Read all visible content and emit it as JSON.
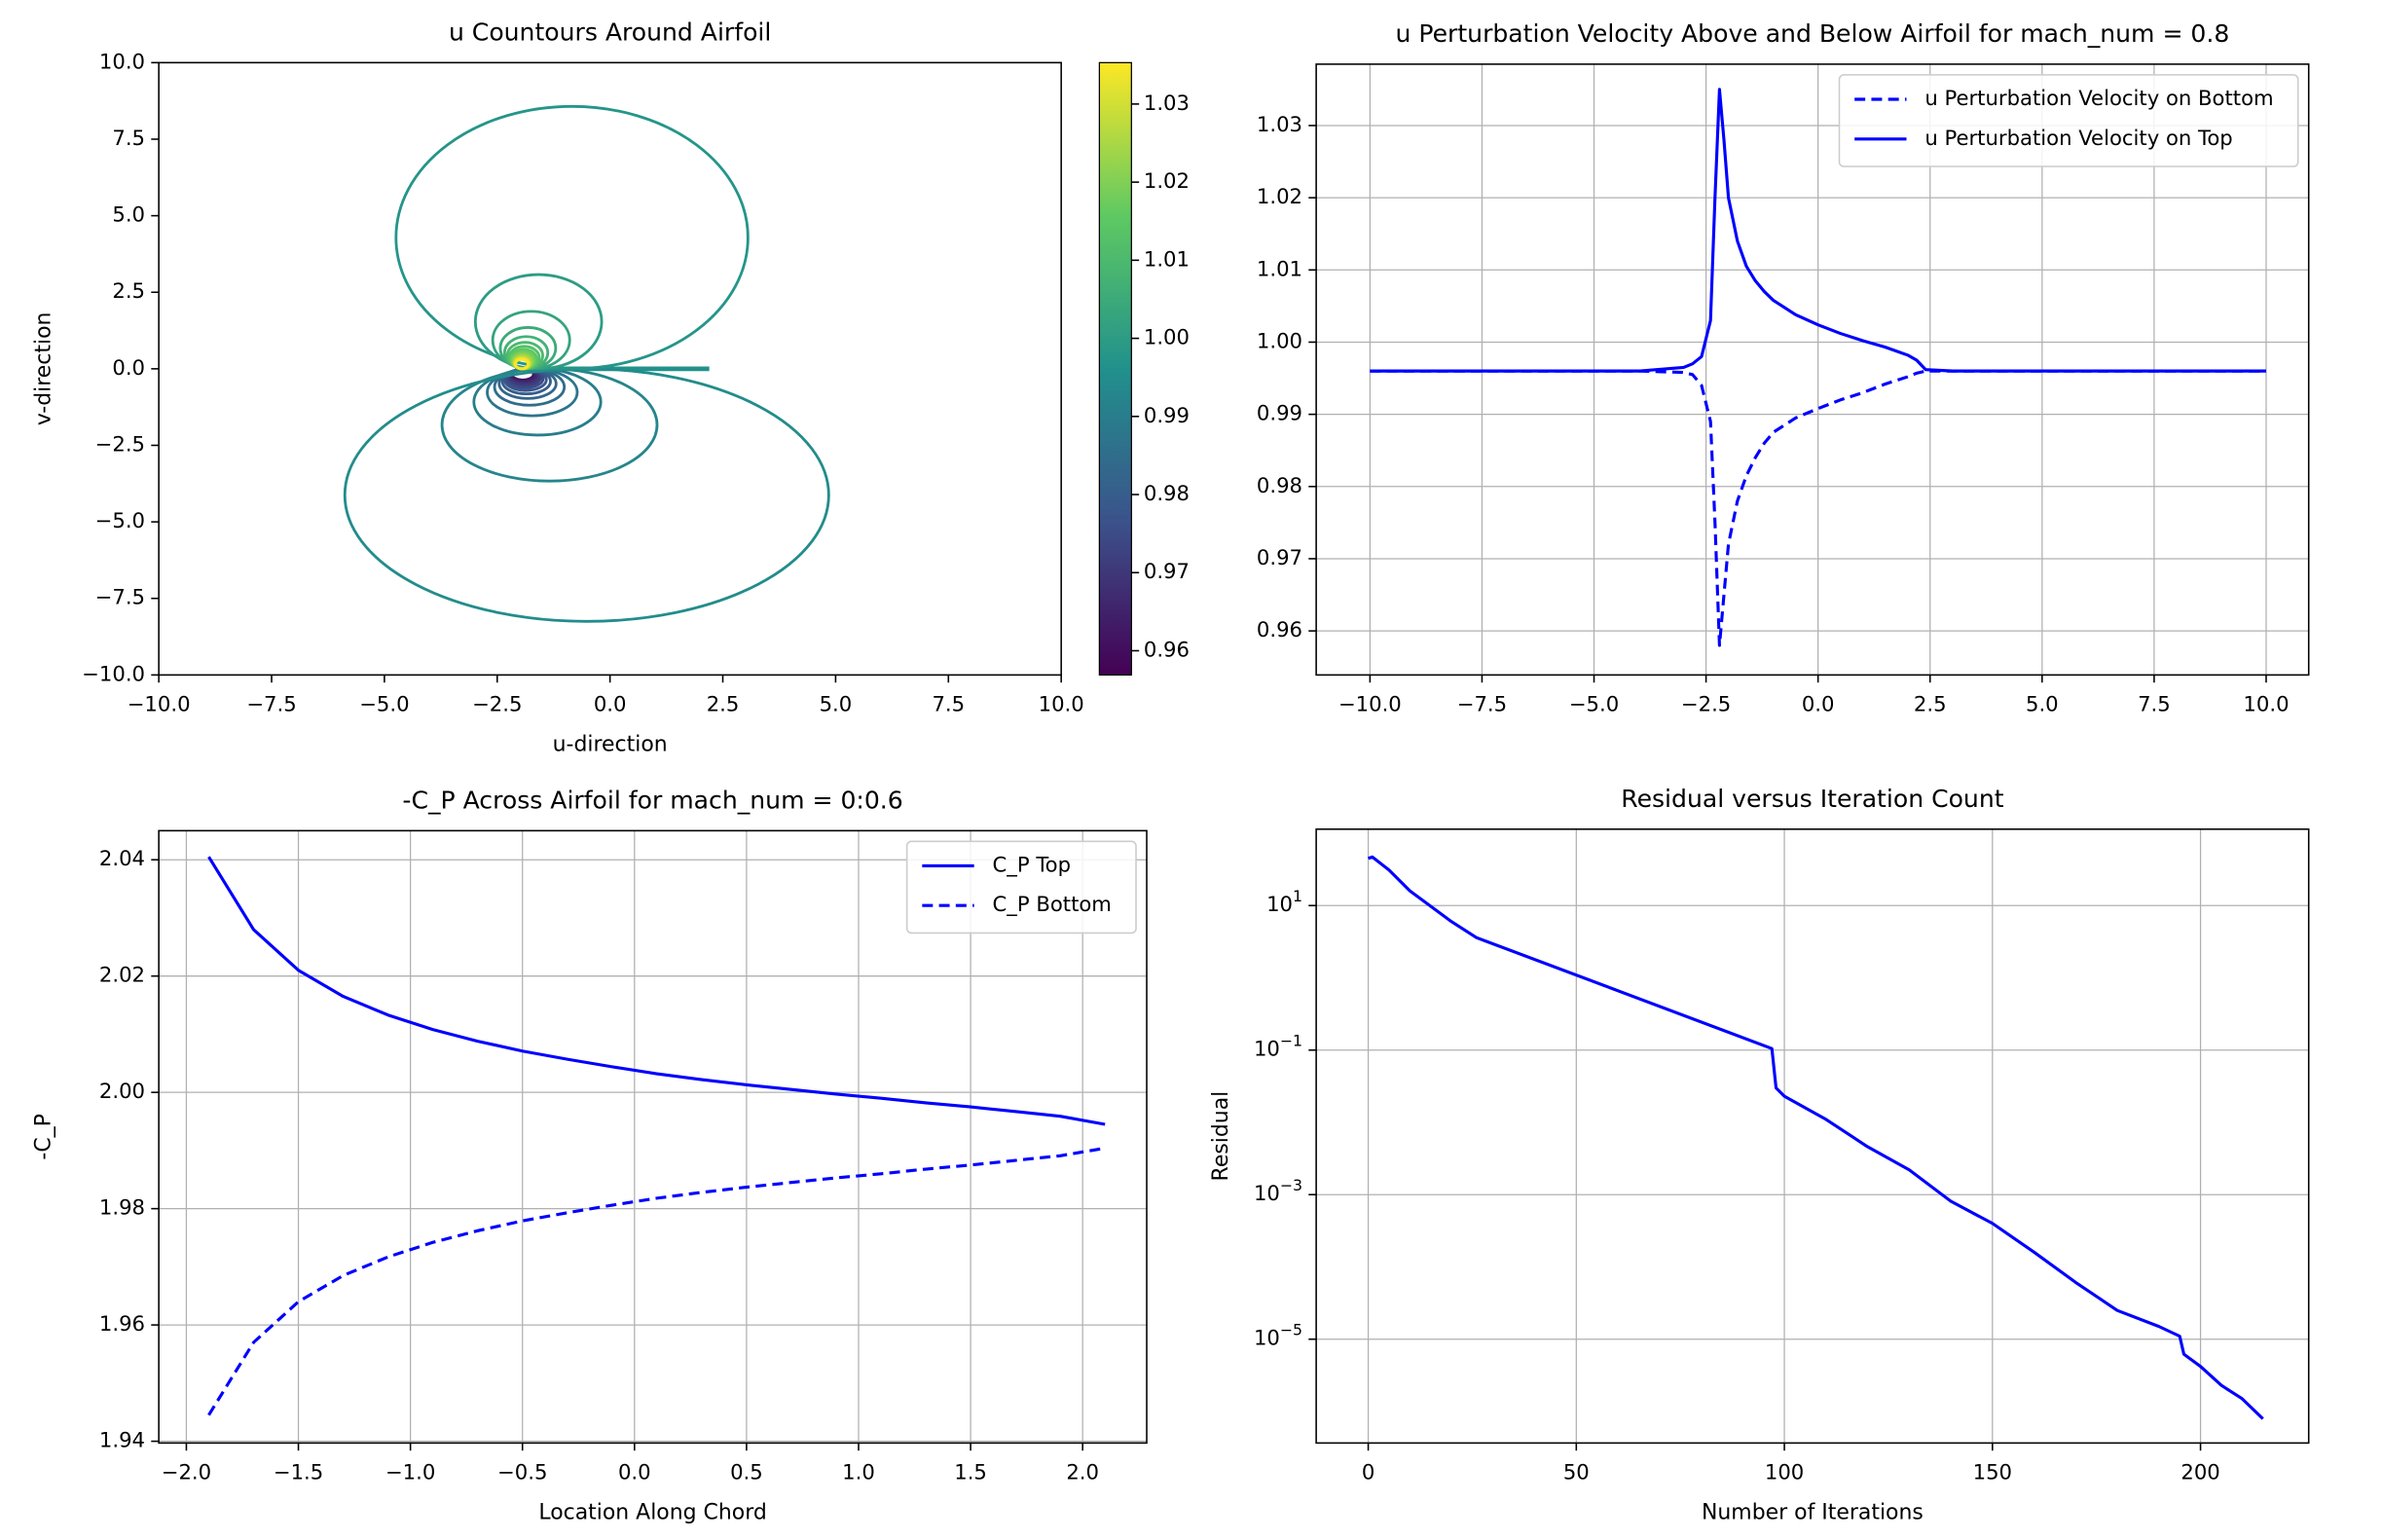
{
  "chart_data": [
    {
      "type": "contour",
      "title": "u Countours Around Airfoil",
      "xlabel": "u-direction",
      "ylabel": "v-direction",
      "xlim": [
        -10,
        10
      ],
      "ylim": [
        -10,
        10
      ],
      "xticks": [
        {
          "value": -10,
          "label": "−10.0"
        },
        {
          "value": -7.5,
          "label": "−7.5"
        },
        {
          "value": -5,
          "label": "−5.0"
        },
        {
          "value": -2.5,
          "label": "−2.5"
        },
        {
          "value": 0,
          "label": "0.0"
        },
        2.5,
        {
          "value": 5,
          "label": "5.0"
        },
        7.5,
        {
          "value": 10,
          "label": "10.0"
        }
      ],
      "yticks": [
        {
          "value": -10,
          "label": "−10.0"
        },
        {
          "value": -7.5,
          "label": "−7.5"
        },
        {
          "value": -5,
          "label": "−5.0"
        },
        {
          "value": -2.5,
          "label": "−2.5"
        },
        {
          "value": 0,
          "label": "0.0"
        },
        2.5,
        {
          "value": 5,
          "label": "5.0"
        },
        7.5,
        {
          "value": 10,
          "label": "10.0"
        }
      ],
      "levels": [
        0.96,
        0.9625,
        0.965,
        0.9675,
        0.97,
        0.9725,
        0.975,
        0.9775,
        0.98,
        0.9825,
        0.985,
        0.9875,
        0.99,
        0.9925,
        0.9945,
        0.9975,
        1.0,
        1.0025,
        1.005,
        1.0075,
        1.01,
        1.0125,
        1.015,
        1.0175,
        1.02,
        1.0225,
        1.025,
        1.0275,
        1.03,
        1.0325,
        1.035
      ],
      "clim": [
        0.9569,
        1.0353
      ],
      "cticks": [
        0.96,
        0.97,
        0.98,
        0.99,
        {
          "value": 1.0,
          "label": "1.00"
        },
        1.01,
        1.02,
        1.03
      ],
      "colormap": "viridis",
      "grid": false
    },
    {
      "type": "line",
      "title": "u Perturbation Velocity Above and Below Airfoil for mach_num = 0.8",
      "xlim": [
        -11.2,
        10.95
      ],
      "ylim": [
        0.9539,
        1.0385
      ],
      "xticks": [
        {
          "value": -10,
          "label": "−10.0"
        },
        {
          "value": -7.5,
          "label": "−7.5"
        },
        {
          "value": -5,
          "label": "−5.0"
        },
        {
          "value": -2.5,
          "label": "−2.5"
        },
        {
          "value": 0,
          "label": "0.0"
        },
        2.5,
        {
          "value": 5,
          "label": "5.0"
        },
        7.5,
        {
          "value": 10,
          "label": "10.0"
        }
      ],
      "yticks": [
        0.96,
        0.97,
        0.98,
        0.99,
        {
          "value": 1.0,
          "label": "1.00"
        },
        1.01,
        1.02,
        1.03
      ],
      "grid": true,
      "legend": "upper right",
      "x": [
        -10,
        -8,
        -6,
        -4,
        -3,
        -2.8,
        -2.6,
        -2.4,
        -2.3,
        -2.2,
        -2.1,
        -2,
        -1.8,
        -1.6,
        -1.4,
        -1.2,
        -1,
        -0.5,
        0,
        0.5,
        1,
        1.5,
        2,
        2.2,
        2.4,
        3,
        4,
        6,
        8,
        10
      ],
      "series": [
        {
          "name": "u Perturbation Velocity on Bottom",
          "color": "#0000ff",
          "linestyle": "dashed",
          "values": [
            0.996,
            0.996,
            0.996,
            0.996,
            0.9958,
            0.9955,
            0.994,
            0.989,
            0.975,
            0.958,
            0.965,
            0.972,
            0.978,
            0.9815,
            0.984,
            0.986,
            0.9875,
            0.9895,
            0.9908,
            0.992,
            0.993,
            0.9942,
            0.9952,
            0.9957,
            0.996,
            0.996,
            0.996,
            0.996,
            0.996,
            0.996
          ]
        },
        {
          "name": "u Perturbation Velocity on Top",
          "color": "#0000ff",
          "linestyle": "solid",
          "values": [
            0.996,
            0.996,
            0.996,
            0.996,
            0.9965,
            0.997,
            0.998,
            1.003,
            1.02,
            1.035,
            1.028,
            1.02,
            1.014,
            1.0105,
            1.0085,
            1.007,
            1.0058,
            1.0038,
            1.0024,
            1.0012,
            1.0002,
            0.9993,
            0.9982,
            0.9975,
            0.9962,
            0.996,
            0.996,
            0.996,
            0.996,
            0.996
          ]
        }
      ]
    },
    {
      "type": "line",
      "title": "-C_P Across Airfoil for mach_num = 0:0.6",
      "xlabel": "Location Along Chord",
      "ylabel": "-C_P",
      "xlim": [
        -2.123,
        2.286
      ],
      "ylim": [
        1.9397,
        2.045
      ],
      "xticks": [
        {
          "value": -2,
          "label": "−2.0"
        },
        {
          "value": -1.5,
          "label": "−1.5"
        },
        {
          "value": -1,
          "label": "−1.0"
        },
        {
          "value": -0.5,
          "label": "−0.5"
        },
        {
          "value": 0,
          "label": "0.0"
        },
        0.5,
        {
          "value": 1,
          "label": "1.0"
        },
        1.5,
        {
          "value": 2,
          "label": "2.0"
        }
      ],
      "yticks": [
        1.94,
        1.96,
        1.98,
        {
          "value": 2.0,
          "label": "2.00"
        },
        2.02,
        2.04
      ],
      "grid": true,
      "legend": "upper right",
      "x": [
        -1.9,
        -1.7,
        -1.5,
        -1.3,
        -1.1,
        -0.9,
        -0.7,
        -0.5,
        -0.3,
        -0.1,
        0.1,
        0.3,
        0.5,
        0.7,
        0.9,
        1.1,
        1.3,
        1.5,
        1.7,
        1.9,
        2.1
      ],
      "series": [
        {
          "name": "C_P Top",
          "color": "#0000ff",
          "linestyle": "solid",
          "values": [
            2.0405,
            2.028,
            2.021,
            2.0165,
            2.0133,
            2.0108,
            2.0088,
            2.0071,
            2.0057,
            2.0044,
            2.0032,
            2.0022,
            2.0013,
            2.0005,
            1.9997,
            1.999,
            1.9982,
            1.9975,
            1.9967,
            1.9959,
            1.9945
          ]
        },
        {
          "name": "C_P Bottom",
          "color": "#0000ff",
          "linestyle": "dashed",
          "values": [
            1.9445,
            1.957,
            1.964,
            1.9685,
            1.9717,
            1.9742,
            1.9762,
            1.9779,
            1.9793,
            1.9806,
            1.9818,
            1.9828,
            1.9837,
            1.9845,
            1.9853,
            1.986,
            1.9868,
            1.9875,
            1.9883,
            1.9891,
            1.9904
          ]
        }
      ]
    },
    {
      "type": "line",
      "title": "Residual versus Iteration Count",
      "xlabel": "Number of Iterations",
      "ylabel": "Residual",
      "xlim": [
        -12.5,
        226
      ],
      "ylim": [
        3.66e-07,
        114
      ],
      "ylog": true,
      "xticks": [
        0,
        50,
        100,
        150,
        200
      ],
      "yticks": [
        {
          "value": 10,
          "label": "10^1"
        },
        {
          "value": 0.1,
          "label": "10^−1"
        },
        {
          "value": 0.001,
          "label": "10^−3"
        },
        {
          "value": 1e-05,
          "label": "10^−5"
        }
      ],
      "grid": true,
      "x": [
        0,
        1,
        5,
        10,
        20,
        26,
        97,
        98,
        100,
        110,
        120,
        130,
        140,
        150,
        160,
        170,
        180,
        190,
        195,
        196,
        200,
        205,
        210,
        215
      ],
      "series": [
        {
          "color": "#0000ff",
          "linestyle": "solid",
          "values": [
            45,
            47,
            31,
            16,
            6,
            3.6,
            0.105,
            0.03,
            0.023,
            0.011,
            0.0046,
            0.0022,
            0.00081,
            0.0004,
            0.00016,
            6.1e-05,
            2.5e-05,
            1.5e-05,
            1.1e-05,
            6.2e-06,
            4.2e-06,
            2.3e-06,
            1.5e-06,
            7.9e-07
          ]
        }
      ]
    }
  ]
}
